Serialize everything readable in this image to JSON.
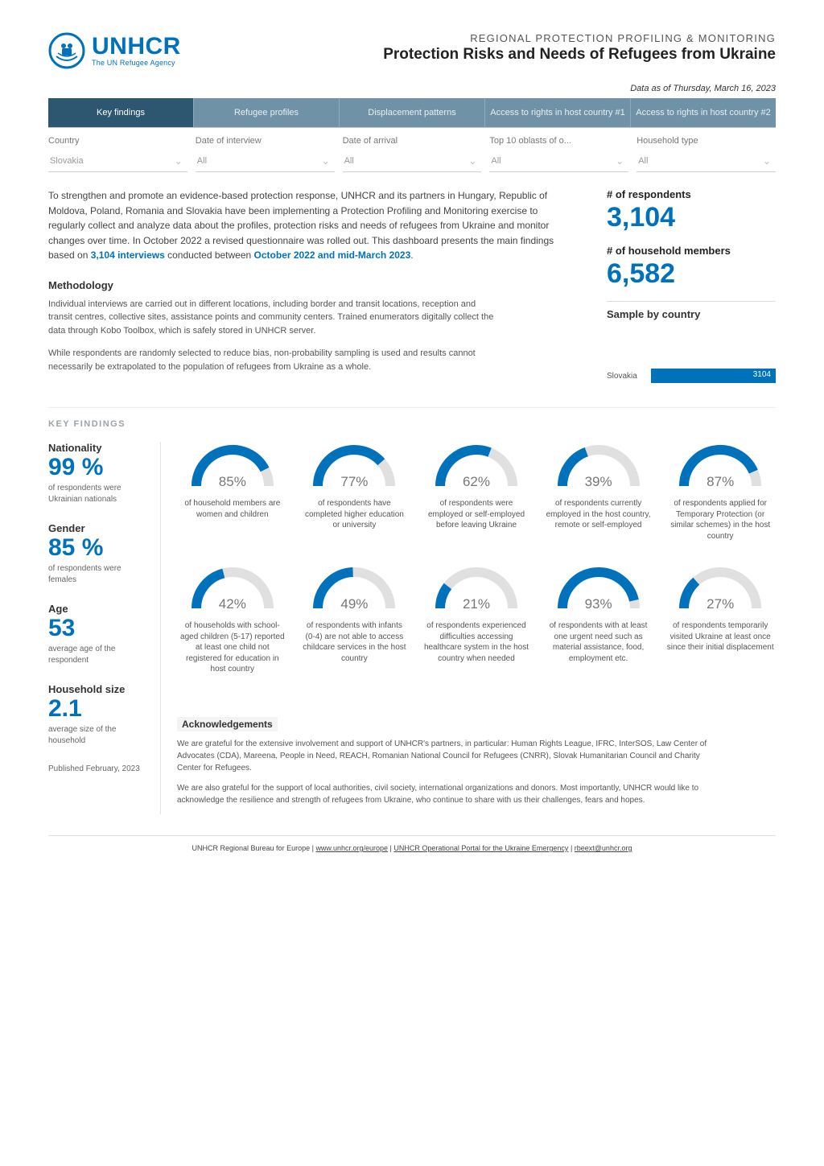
{
  "colors": {
    "brand": "#0072bc",
    "tab_bg": "#6f92a6",
    "tab_active": "#2d5770",
    "gauge_track": "#e0e0e0",
    "gauge_fill": "#0072bc",
    "text_muted": "#777777"
  },
  "header": {
    "logo_title": "UNHCR",
    "logo_sub": "The UN Refugee Agency",
    "eyebrow": "REGIONAL PROTECTION PROFILING & MONITORING",
    "title": "Protection Risks and Needs of Refugees from Ukraine",
    "data_date": "Data as of Thursday, March 16, 2023"
  },
  "tabs": [
    {
      "label": "Key findings",
      "active": true
    },
    {
      "label": "Refugee profiles",
      "active": false
    },
    {
      "label": "Displacement patterns",
      "active": false
    },
    {
      "label": "Access to rights in host country #1",
      "active": false
    },
    {
      "label": "Access to rights in host country #2",
      "active": false
    }
  ],
  "filters": [
    {
      "label": "Country",
      "value": "Slovakia"
    },
    {
      "label": "Date of interview",
      "value": "All"
    },
    {
      "label": "Date of arrival",
      "value": "All"
    },
    {
      "label": "Top 10 oblasts of o...",
      "value": "All"
    },
    {
      "label": "Household type",
      "value": "All"
    }
  ],
  "intro": {
    "paragraph_before": "To strengthen and promote an evidence-based protection response, UNHCR and its partners in Hungary, Republic of Moldova, Poland, Romania and Slovakia have been implementing a Protection Profiling and Monitoring exercise to regularly collect and analyze data about the profiles, protection risks and needs of refugees from Ukraine and monitor changes over time. In October 2022 a revised questionnaire was rolled out. This dashboard presents the main findings based on ",
    "hl1": "3,104 interviews",
    "middle": " conducted between ",
    "hl2": "October 2022 and mid-March 2023",
    "after": "."
  },
  "stats": {
    "respondents_label": "# of respondents",
    "respondents_value": "3,104",
    "household_label": "# of household members",
    "household_value": "6,582"
  },
  "sample": {
    "heading": "Sample by country",
    "rows": [
      {
        "label": "Slovakia",
        "value": "3104",
        "pct": 100
      }
    ]
  },
  "methodology": {
    "heading": "Methodology",
    "p1": "Individual interviews are carried out in different locations, including border and transit locations, reception and transit centres, collective sites, assistance points and community centers. Trained enumerators digitally collect the data through Kobo Toolbox, which is safely stored in UNHCR server.",
    "p2": "While respondents are randomly selected to reduce bias, non-probability sampling is used and results cannot necessarily be extrapolated to the population of refugees from Ukraine as a whole."
  },
  "kf_label": "KEY FINDINGS",
  "left_findings": [
    {
      "title": "Nationality",
      "value": "99 %",
      "desc": "of respondents were Ukrainian nationals"
    },
    {
      "title": "Gender",
      "value": "85 %",
      "desc": "of respondents were females"
    },
    {
      "title": "Age",
      "value": "53",
      "desc": "average age of the respondent"
    },
    {
      "title": "Household size",
      "value": "2.1",
      "desc": "average size of the household"
    }
  ],
  "published": "Published February, 2023",
  "gauges": {
    "row1": [
      {
        "pct": 85,
        "label": "85%",
        "desc": "of household members are women and children"
      },
      {
        "pct": 77,
        "label": "77%",
        "desc": "of respondents have completed higher education or university"
      },
      {
        "pct": 62,
        "label": "62%",
        "desc": "of respondents were employed or self-employed before leaving Ukraine"
      },
      {
        "pct": 39,
        "label": "39%",
        "desc": "of respondents currently employed in the host country, remote or self-employed"
      },
      {
        "pct": 87,
        "label": "87%",
        "desc": "of respondents applied for Temporary Protection (or similar schemes) in the host country"
      }
    ],
    "row2": [
      {
        "pct": 42,
        "label": "42%",
        "desc": "of households with school-aged children (5-17) reported at least one child not registered for education in host country"
      },
      {
        "pct": 49,
        "label": "49%",
        "desc": "of respondents with infants (0-4) are not able to access childcare services in the host country"
      },
      {
        "pct": 21,
        "label": "21%",
        "desc": "of respondents experienced difficulties accessing healthcare system in the host country when needed"
      },
      {
        "pct": 93,
        "label": "93%",
        "desc": "of respondents with at least one urgent need such as material assistance, food, employment etc."
      },
      {
        "pct": 27,
        "label": "27%",
        "desc": "of respondents temporarily visited Ukraine at least once since their initial displacement"
      }
    ]
  },
  "ack": {
    "heading": "Acknowledgements",
    "p1": "We are grateful for the extensive involvement and support of UNHCR's partners, in particular: Human Rights League, IFRC, InterSOS, Law Center of Advocates (CDA), Mareena, People in Need, REACH, Romanian National Council for Refugees (CNRR), Slovak Humanitarian Council and Charity Center for Refugees.",
    "p2": "We are also grateful for the support of local authorities, civil society, international organizations and donors. Most importantly, UNHCR would like to acknowledge the resilience and strength of refugees from Ukraine, who continue to share with us their challenges, fears and hopes."
  },
  "footer": {
    "prefix": "UNHCR Regional Bureau for Europe | ",
    "link1": "www.unhcr.org/europe",
    "mid": " | ",
    "link2": "UNHCR Operational Portal for the Ukraine Emergency",
    "mid2": " | ",
    "link3": "rbeext@unhcr.org"
  }
}
